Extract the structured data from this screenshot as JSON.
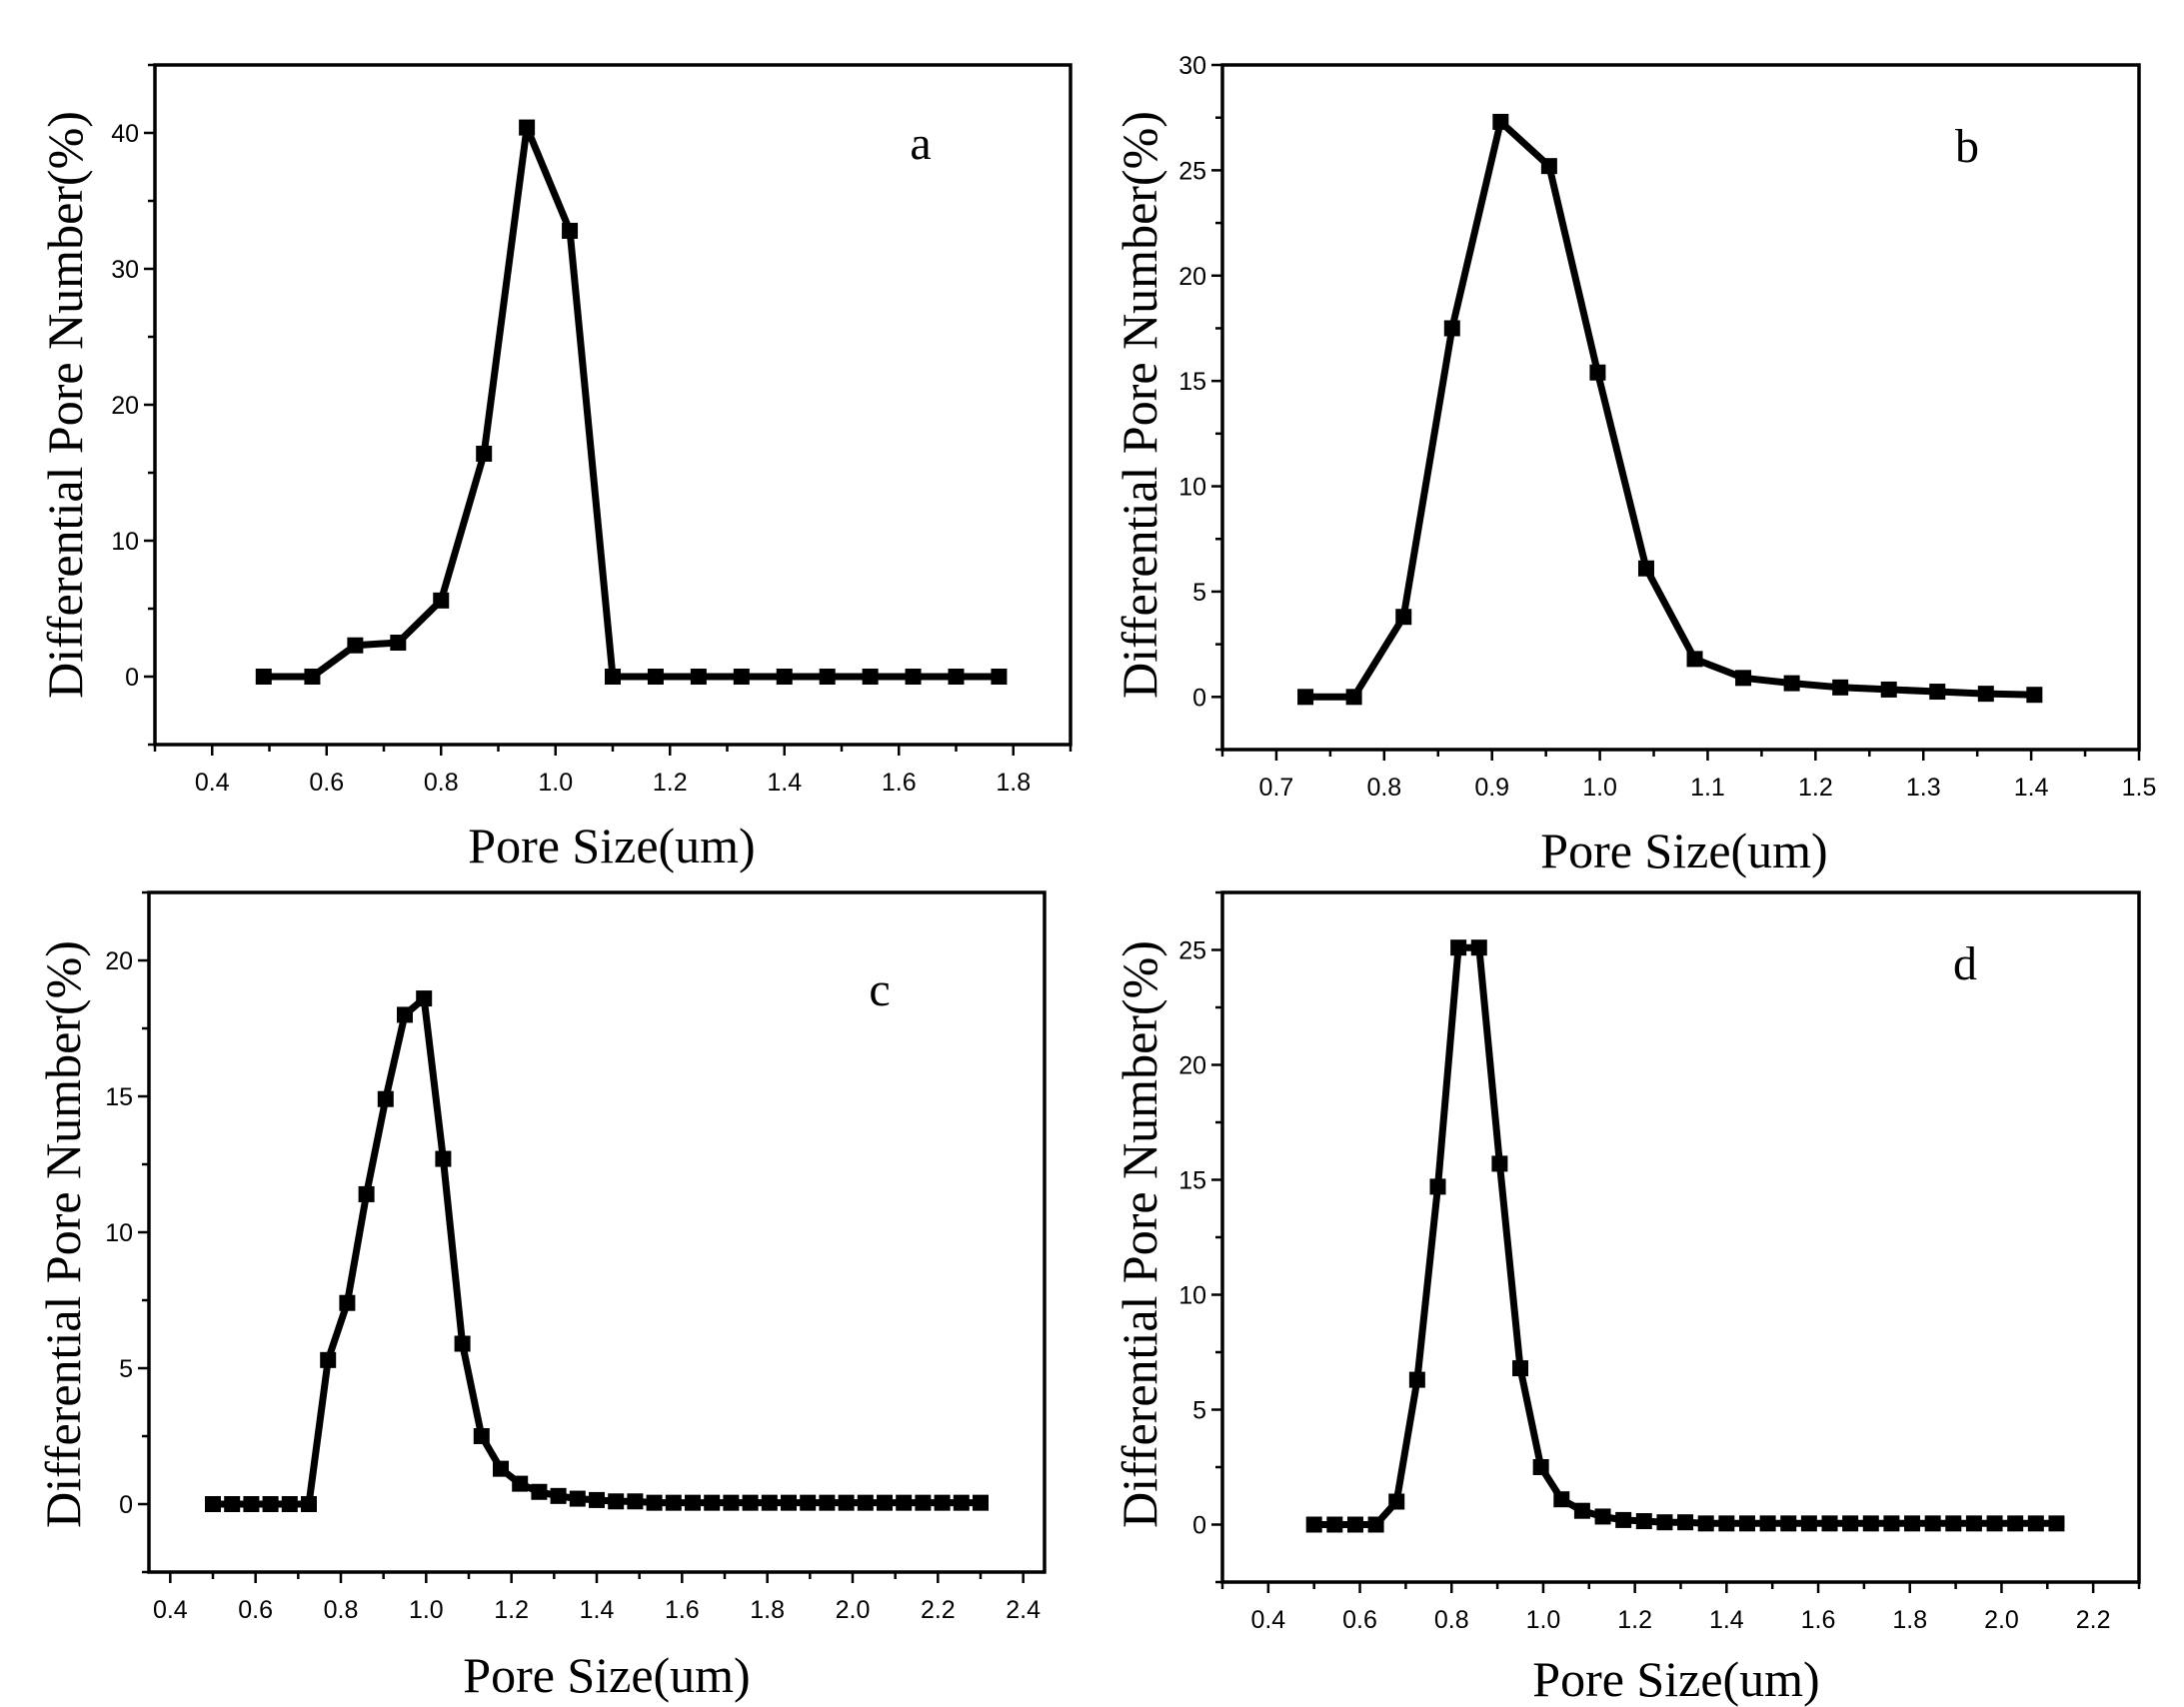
{
  "figure": {
    "colors": {
      "line": "#000000",
      "marker": "#000000",
      "background": "#ffffff"
    },
    "marker_shape": "square"
  },
  "chart_data": [
    {
      "type": "line",
      "panel": "a",
      "xlabel": "Pore Size(um)",
      "ylabel": "Differential Pore Number(%)",
      "xlim": [
        0.3,
        1.9
      ],
      "ylim": [
        -5,
        45
      ],
      "xticks": [
        "0.4",
        "0.6",
        "0.8",
        "1.0",
        "1.2",
        "1.4",
        "1.6",
        "1.8"
      ],
      "yticks": [
        "0",
        "10",
        "20",
        "30",
        "40"
      ],
      "series": [
        {
          "name": "a",
          "x": [
            0.49,
            0.575,
            0.65,
            0.725,
            0.8,
            0.875,
            0.95,
            1.025,
            1.1,
            1.175,
            1.25,
            1.325,
            1.4,
            1.475,
            1.55,
            1.625,
            1.7,
            1.775
          ],
          "y": [
            0,
            0,
            2.3,
            2.5,
            5.6,
            16.4,
            40.4,
            32.8,
            0,
            0,
            0,
            0,
            0,
            0,
            0,
            0,
            0,
            0
          ]
        }
      ]
    },
    {
      "type": "line",
      "panel": "b",
      "xlabel": "Pore Size(um)",
      "ylabel": "Differential Pore Number(%)",
      "xlim": [
        0.65,
        1.5
      ],
      "ylim": [
        -2.5,
        30
      ],
      "xticks": [
        "0.7",
        "0.8",
        "0.9",
        "1.0",
        "1.1",
        "1.2",
        "1.3",
        "1.4",
        "1.5"
      ],
      "yticks": [
        "0",
        "5",
        "10",
        "15",
        "20",
        "25",
        "30"
      ],
      "series": [
        {
          "name": "b",
          "x": [
            0.727,
            0.772,
            0.818,
            0.863,
            0.908,
            0.953,
            0.998,
            1.043,
            1.088,
            1.133,
            1.178,
            1.223,
            1.268,
            1.313,
            1.358,
            1.403
          ],
          "y": [
            0,
            0,
            3.8,
            17.5,
            27.3,
            25.2,
            15.4,
            6.1,
            1.8,
            0.9,
            0.65,
            0.45,
            0.35,
            0.25,
            0.15,
            0.1
          ]
        }
      ]
    },
    {
      "type": "line",
      "panel": "c",
      "xlabel": "Pore Size(um)",
      "ylabel": "Differential Pore Number(%)",
      "xlim": [
        0.35,
        2.45
      ],
      "ylim": [
        -2.5,
        22.5
      ],
      "xticks": [
        "0.4",
        "0.6",
        "0.8",
        "1.0",
        "1.2",
        "1.4",
        "1.6",
        "1.8",
        "2.0",
        "2.2",
        "2.4"
      ],
      "yticks": [
        "0",
        "5",
        "10",
        "15",
        "20"
      ],
      "series": [
        {
          "name": "c",
          "x": [
            0.5,
            0.545,
            0.59,
            0.635,
            0.68,
            0.725,
            0.77,
            0.815,
            0.86,
            0.905,
            0.95,
            0.995,
            1.04,
            1.085,
            1.13,
            1.175,
            1.22,
            1.265,
            1.31,
            1.355,
            1.4,
            1.445,
            1.49,
            1.535,
            1.58,
            1.625,
            1.67,
            1.715,
            1.76,
            1.805,
            1.85,
            1.895,
            1.94,
            1.985,
            2.03,
            2.075,
            2.12,
            2.165,
            2.21,
            2.255,
            2.3
          ],
          "y": [
            0,
            0,
            0,
            0,
            0,
            0,
            5.3,
            7.4,
            11.4,
            14.9,
            18.0,
            18.6,
            12.7,
            5.9,
            2.5,
            1.3,
            0.75,
            0.45,
            0.3,
            0.2,
            0.15,
            0.1,
            0.1,
            0.05,
            0.05,
            0.05,
            0.05,
            0.05,
            0.05,
            0.05,
            0.05,
            0.05,
            0.05,
            0.05,
            0.05,
            0.05,
            0.05,
            0.05,
            0.05,
            0.05,
            0.05
          ]
        }
      ]
    },
    {
      "type": "line",
      "panel": "d",
      "xlabel": "Pore Size(um)",
      "ylabel": "Differential Pore Number(%)",
      "xlim": [
        0.3,
        2.3
      ],
      "ylim": [
        -2.5,
        27.5
      ],
      "xticks": [
        "0.4",
        "0.6",
        "0.8",
        "1.0",
        "1.2",
        "1.4",
        "1.6",
        "1.8",
        "2.0",
        "2.2"
      ],
      "yticks": [
        "0",
        "5",
        "10",
        "15",
        "20",
        "25"
      ],
      "series": [
        {
          "name": "d",
          "x": [
            0.5,
            0.545,
            0.59,
            0.635,
            0.68,
            0.725,
            0.77,
            0.815,
            0.86,
            0.905,
            0.95,
            0.995,
            1.04,
            1.085,
            1.13,
            1.175,
            1.22,
            1.265,
            1.31,
            1.355,
            1.4,
            1.445,
            1.49,
            1.535,
            1.58,
            1.625,
            1.67,
            1.715,
            1.76,
            1.805,
            1.85,
            1.895,
            1.94,
            1.985,
            2.03,
            2.075,
            2.12
          ],
          "y": [
            0,
            0,
            0,
            0,
            1.0,
            6.3,
            14.7,
            25.1,
            25.1,
            15.7,
            6.8,
            2.5,
            1.1,
            0.6,
            0.35,
            0.2,
            0.15,
            0.1,
            0.1,
            0.05,
            0.05,
            0.05,
            0.05,
            0.05,
            0.05,
            0.05,
            0.05,
            0.05,
            0.05,
            0.05,
            0.05,
            0.05,
            0.05,
            0.05,
            0.05,
            0.05,
            0.05
          ]
        }
      ]
    }
  ]
}
